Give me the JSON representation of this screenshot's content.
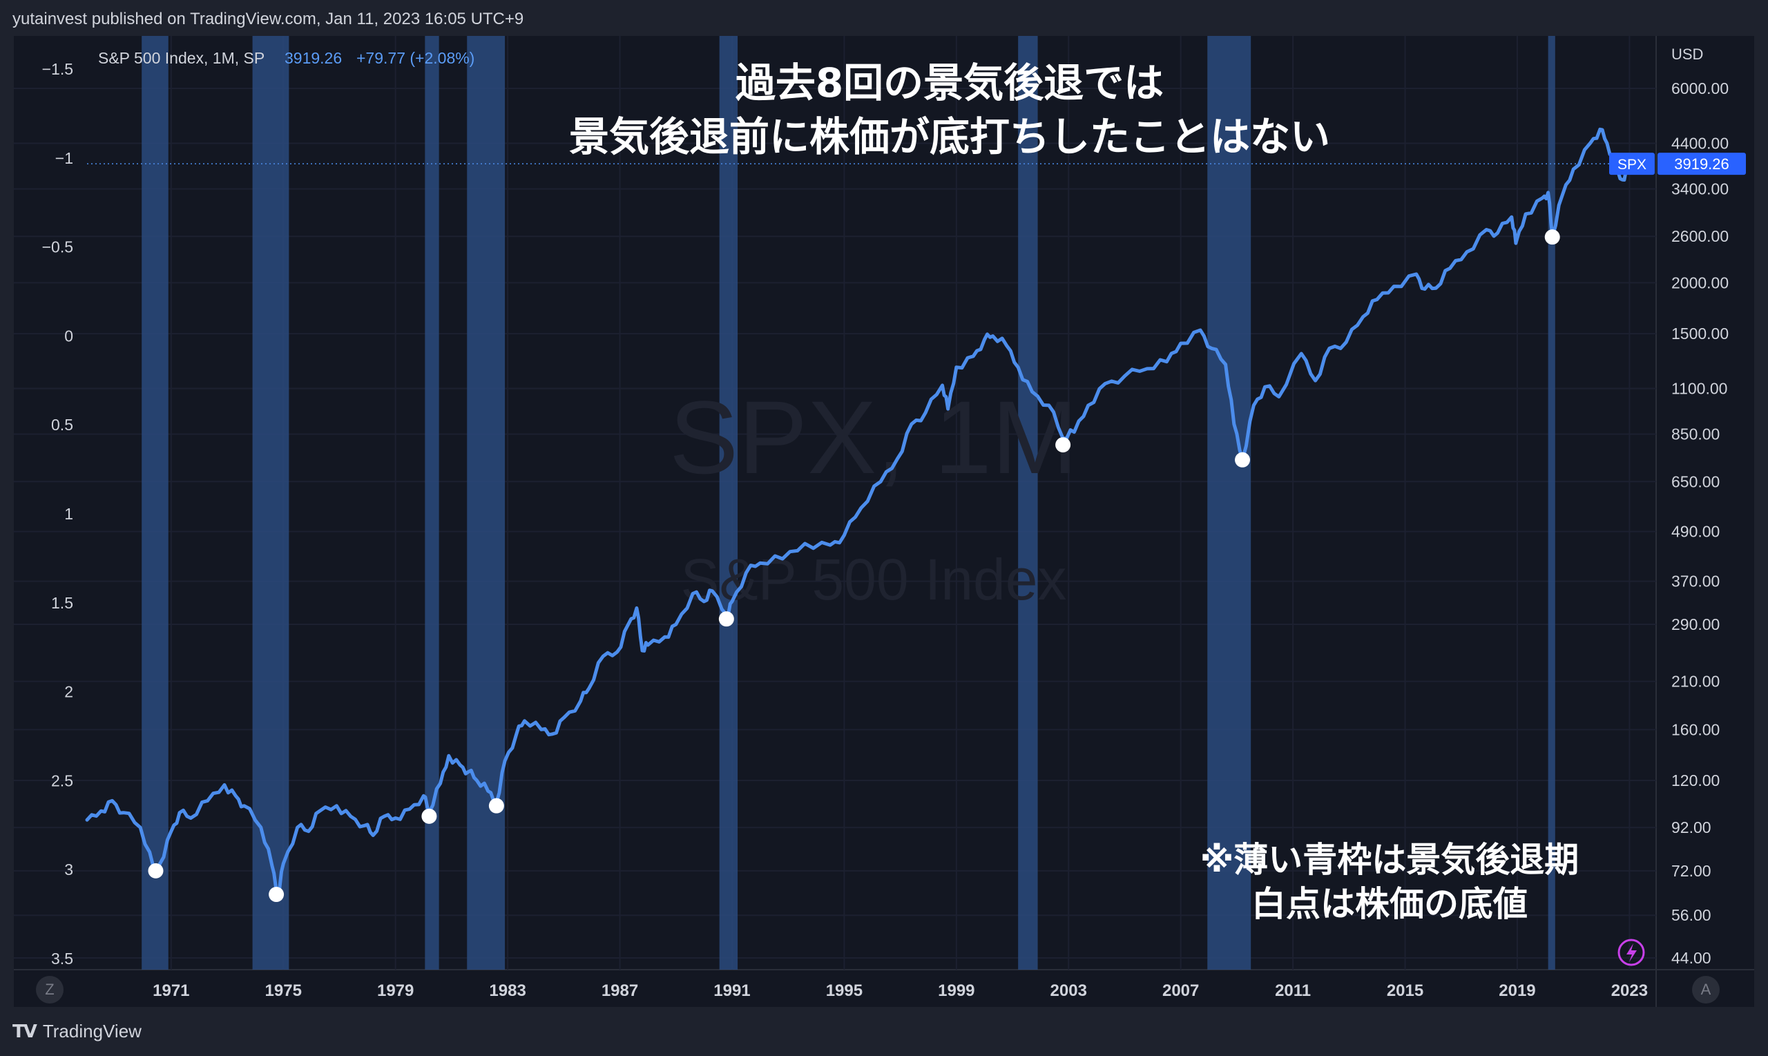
{
  "header": {
    "publisher": "yutainvest published on TradingView.com, Jan 11, 2023 16:05 UTC+9"
  },
  "legend": {
    "symbol": "S&P 500 Index, 1M, SP",
    "price": "3919.26",
    "change": "+79.77 (+2.08%)"
  },
  "annotations": {
    "title_line1": "過去8回の景気後退では",
    "title_line2": "景気後退前に株価が底打ちしたことはない",
    "note_line1": "※薄い青枠は景気後退期",
    "note_line2": "白点は株価の底値"
  },
  "watermark": {
    "symbol": "SPX, 1M",
    "name": "S&P 500 Index"
  },
  "price_label": {
    "ticker": "SPX",
    "value": "3919.26"
  },
  "footer": {
    "brand": "TradingView",
    "left_button": "Z",
    "right_button": "A",
    "currency": "USD"
  },
  "colors": {
    "background": "#131722",
    "panel": "#1e222d",
    "line": "#4c8dec",
    "recession_band": "#2a4a7c",
    "label_bg": "#2962ff"
  },
  "chart_data": {
    "type": "line",
    "title": "",
    "series": [
      {
        "name": "",
        "points": [
          [
            1968.0,
            96
          ],
          [
            1968.5,
            101
          ],
          [
            1968.9,
            107
          ],
          [
            1969.3,
            100
          ],
          [
            1969.9,
            92
          ],
          [
            1970.4,
            72
          ],
          [
            1970.6,
            75
          ],
          [
            1971.0,
            90
          ],
          [
            1971.3,
            100
          ],
          [
            1971.7,
            97
          ],
          [
            1972.3,
            107
          ],
          [
            1972.9,
            117
          ],
          [
            1973.3,
            110
          ],
          [
            1973.6,
            104
          ],
          [
            1974.2,
            92
          ],
          [
            1974.6,
            74
          ],
          [
            1974.8,
            63
          ],
          [
            1975.0,
            75
          ],
          [
            1975.5,
            92
          ],
          [
            1975.9,
            90
          ],
          [
            1976.3,
            101
          ],
          [
            1976.9,
            104
          ],
          [
            1977.4,
            98
          ],
          [
            1977.9,
            93
          ],
          [
            1978.2,
            88
          ],
          [
            1978.6,
            98
          ],
          [
            1979.0,
            97
          ],
          [
            1979.5,
            102
          ],
          [
            1980.0,
            110
          ],
          [
            1980.2,
            100
          ],
          [
            1980.6,
            118
          ],
          [
            1980.9,
            138
          ],
          [
            1981.3,
            131
          ],
          [
            1981.6,
            126
          ],
          [
            1981.9,
            120
          ],
          [
            1982.3,
            113
          ],
          [
            1982.6,
            106
          ],
          [
            1982.9,
            134
          ],
          [
            1983.3,
            155
          ],
          [
            1983.6,
            168
          ],
          [
            1984.2,
            160
          ],
          [
            1984.6,
            156
          ],
          [
            1985.0,
            171
          ],
          [
            1985.6,
            188
          ],
          [
            1985.9,
            202
          ],
          [
            1986.4,
            242
          ],
          [
            1986.9,
            248
          ],
          [
            1987.3,
            290
          ],
          [
            1987.6,
            318
          ],
          [
            1987.8,
            250
          ],
          [
            1988.0,
            258
          ],
          [
            1988.6,
            270
          ],
          [
            1989.0,
            290
          ],
          [
            1989.6,
            345
          ],
          [
            1990.0,
            330
          ],
          [
            1990.3,
            350
          ],
          [
            1990.8,
            306
          ],
          [
            1991.0,
            330
          ],
          [
            1991.5,
            388
          ],
          [
            1992.0,
            410
          ],
          [
            1992.8,
            420
          ],
          [
            1993.6,
            458
          ],
          [
            1994.5,
            454
          ],
          [
            1995.0,
            480
          ],
          [
            1995.6,
            560
          ],
          [
            1996.3,
            650
          ],
          [
            1996.9,
            740
          ],
          [
            1997.4,
            900
          ],
          [
            1997.9,
            960
          ],
          [
            1998.5,
            1120
          ],
          [
            1998.7,
            980
          ],
          [
            1999.0,
            1240
          ],
          [
            1999.6,
            1320
          ],
          [
            2000.0,
            1450
          ],
          [
            2000.3,
            1480
          ],
          [
            2000.8,
            1400
          ],
          [
            2001.2,
            1240
          ],
          [
            2001.7,
            1080
          ],
          [
            2002.3,
            1000
          ],
          [
            2002.8,
            830
          ],
          [
            2003.2,
            860
          ],
          [
            2003.7,
            1000
          ],
          [
            2004.3,
            1130
          ],
          [
            2005.0,
            1180
          ],
          [
            2005.8,
            1230
          ],
          [
            2006.5,
            1280
          ],
          [
            2007.0,
            1420
          ],
          [
            2007.7,
            1530
          ],
          [
            2008.1,
            1380
          ],
          [
            2008.6,
            1260
          ],
          [
            2008.9,
            900
          ],
          [
            2009.2,
            735
          ],
          [
            2009.6,
            1000
          ],
          [
            2010.0,
            1110
          ],
          [
            2010.5,
            1050
          ],
          [
            2011.3,
            1340
          ],
          [
            2011.8,
            1150
          ],
          [
            2012.3,
            1380
          ],
          [
            2012.9,
            1430
          ],
          [
            2013.5,
            1650
          ],
          [
            2014.0,
            1820
          ],
          [
            2014.6,
            1960
          ],
          [
            2015.4,
            2100
          ],
          [
            2015.7,
            1930
          ],
          [
            2016.1,
            1940
          ],
          [
            2016.6,
            2170
          ],
          [
            2017.2,
            2380
          ],
          [
            2017.9,
            2700
          ],
          [
            2018.3,
            2650
          ],
          [
            2018.8,
            2900
          ],
          [
            2018.95,
            2500
          ],
          [
            2019.3,
            2950
          ],
          [
            2019.9,
            3230
          ],
          [
            2020.1,
            3330
          ],
          [
            2020.25,
            2590
          ],
          [
            2020.6,
            3270
          ],
          [
            2021.0,
            3800
          ],
          [
            2021.6,
            4400
          ],
          [
            2021.95,
            4760
          ],
          [
            2022.2,
            4400
          ],
          [
            2022.5,
            3785
          ],
          [
            2022.75,
            3580
          ],
          [
            2022.95,
            3839
          ],
          [
            2023.03,
            3919
          ]
        ]
      }
    ],
    "recessions": [
      [
        1969.95,
        1970.9
      ],
      [
        1973.9,
        1975.2
      ],
      [
        1980.05,
        1980.55
      ],
      [
        1981.55,
        1982.9
      ],
      [
        1990.55,
        1991.2
      ],
      [
        2001.2,
        2001.9
      ],
      [
        2007.95,
        2009.5
      ],
      [
        2020.1,
        2020.35
      ]
    ],
    "bottoms": [
      [
        1970.45,
        72
      ],
      [
        1974.75,
        63
      ],
      [
        1980.2,
        98
      ],
      [
        1982.6,
        104
      ],
      [
        1990.8,
        299
      ],
      [
        2002.8,
        800
      ],
      [
        2009.2,
        735
      ],
      [
        2020.25,
        2590
      ]
    ],
    "x_ticks": [
      "1971",
      "1975",
      "1979",
      "1983",
      "1987",
      "1991",
      "1995",
      "1999",
      "2003",
      "2007",
      "2011",
      "2015",
      "2019",
      "2023"
    ],
    "y_ticks": [
      "6000.00",
      "4400.00",
      "3400.00",
      "2600.00",
      "2000.00",
      "1500.00",
      "1100.00",
      "850.00",
      "650.00",
      "490.00",
      "370.00",
      "290.00",
      "210.00",
      "160.00",
      "120.00",
      "92.00",
      "72.00",
      "56.00",
      "44.00"
    ],
    "left_ticks": [
      "−1.5",
      "−1",
      "−0.5",
      "0",
      "0.5",
      "1",
      "1.5",
      "2",
      "2.5",
      "3",
      "3.5"
    ],
    "xlim": [
      1968.0,
      2024.0
    ],
    "ylim": [
      42,
      7000
    ],
    "yscale": "log",
    "ylabel": "USD",
    "grid": true,
    "current_value": 3919.26
  }
}
